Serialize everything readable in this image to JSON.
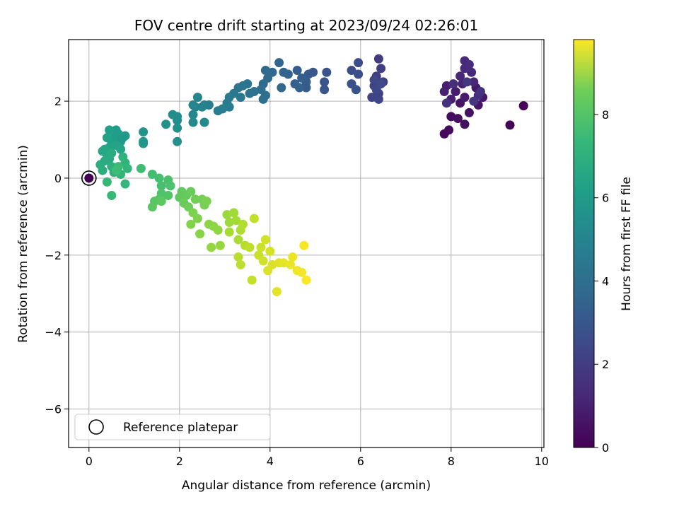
{
  "chart_data": {
    "type": "scatter",
    "title": "FOV centre drift starting at 2023/09/24 02:26:01",
    "xlabel": "Angular distance from reference (arcmin)",
    "ylabel": "Rotation from reference (arcmin)",
    "xlim": [
      -0.45,
      10.05
    ],
    "ylim": [
      -7.0,
      3.6
    ],
    "xticks": [
      0,
      2,
      4,
      6,
      8,
      10
    ],
    "yticks": [
      -6,
      -4,
      -2,
      0,
      2
    ],
    "grid": true,
    "colorbar": {
      "label": "Hours from first FF file",
      "range": [
        0,
        9.8
      ],
      "ticks": [
        0,
        2,
        4,
        6,
        8
      ],
      "colormap": "viridis"
    },
    "legend": {
      "placement": "lower-left",
      "entries": [
        "Reference platepar"
      ]
    },
    "reference_point": {
      "x": 0,
      "y": 0,
      "t": 0
    },
    "series": [
      {
        "color_by": "t",
        "points": [
          {
            "x": 9.6,
            "y": 1.88,
            "t": 0.05
          },
          {
            "x": 9.3,
            "y": 1.38,
            "t": 0.1
          },
          {
            "x": 7.85,
            "y": 1.15,
            "t": 0.2
          },
          {
            "x": 7.95,
            "y": 1.25,
            "t": 0.25
          },
          {
            "x": 8.0,
            "y": 1.6,
            "t": 0.3
          },
          {
            "x": 8.15,
            "y": 1.55,
            "t": 0.35
          },
          {
            "x": 8.3,
            "y": 1.4,
            "t": 0.4
          },
          {
            "x": 8.4,
            "y": 1.7,
            "t": 0.45
          },
          {
            "x": 8.2,
            "y": 1.95,
            "t": 0.5
          },
          {
            "x": 8.6,
            "y": 1.9,
            "t": 0.55
          },
          {
            "x": 8.7,
            "y": 2.1,
            "t": 0.6
          },
          {
            "x": 8.55,
            "y": 2.35,
            "t": 0.65
          },
          {
            "x": 8.3,
            "y": 2.1,
            "t": 0.7
          },
          {
            "x": 8.1,
            "y": 2.25,
            "t": 0.75
          },
          {
            "x": 7.9,
            "y": 2.4,
            "t": 0.8
          },
          {
            "x": 8.0,
            "y": 2.05,
            "t": 0.85
          },
          {
            "x": 7.85,
            "y": 2.25,
            "t": 0.9
          },
          {
            "x": 8.25,
            "y": 2.45,
            "t": 0.95
          },
          {
            "x": 8.5,
            "y": 2.5,
            "t": 1.0
          },
          {
            "x": 8.2,
            "y": 2.65,
            "t": 1.05
          },
          {
            "x": 8.45,
            "y": 2.75,
            "t": 1.1
          },
          {
            "x": 8.3,
            "y": 2.85,
            "t": 1.15
          },
          {
            "x": 8.3,
            "y": 3.05,
            "t": 1.2
          },
          {
            "x": 8.4,
            "y": 2.95,
            "t": 1.25
          },
          {
            "x": 8.6,
            "y": 2.15,
            "t": 1.3
          },
          {
            "x": 8.05,
            "y": 2.45,
            "t": 1.35
          },
          {
            "x": 7.9,
            "y": 1.95,
            "t": 1.4
          },
          {
            "x": 8.5,
            "y": 2.0,
            "t": 1.45
          },
          {
            "x": 8.65,
            "y": 2.25,
            "t": 1.5
          },
          {
            "x": 8.35,
            "y": 2.5,
            "t": 1.55
          },
          {
            "x": 6.4,
            "y": 3.1,
            "t": 1.7
          },
          {
            "x": 6.45,
            "y": 2.85,
            "t": 1.75
          },
          {
            "x": 6.35,
            "y": 2.65,
            "t": 1.8
          },
          {
            "x": 6.5,
            "y": 2.5,
            "t": 1.85
          },
          {
            "x": 6.3,
            "y": 2.4,
            "t": 1.9
          },
          {
            "x": 6.4,
            "y": 2.2,
            "t": 1.95
          },
          {
            "x": 6.25,
            "y": 2.1,
            "t": 2.0
          },
          {
            "x": 6.4,
            "y": 2.05,
            "t": 2.05
          },
          {
            "x": 6.3,
            "y": 2.55,
            "t": 2.1
          },
          {
            "x": 6.35,
            "y": 2.3,
            "t": 2.15
          },
          {
            "x": 6.45,
            "y": 2.45,
            "t": 2.2
          },
          {
            "x": 5.95,
            "y": 3.0,
            "t": 2.3
          },
          {
            "x": 5.8,
            "y": 2.8,
            "t": 2.35
          },
          {
            "x": 5.95,
            "y": 2.7,
            "t": 2.4
          },
          {
            "x": 5.8,
            "y": 2.45,
            "t": 2.45
          },
          {
            "x": 5.9,
            "y": 2.3,
            "t": 2.5
          },
          {
            "x": 5.25,
            "y": 2.75,
            "t": 2.55
          },
          {
            "x": 5.2,
            "y": 2.5,
            "t": 2.6
          },
          {
            "x": 5.2,
            "y": 2.3,
            "t": 2.65
          },
          {
            "x": 4.95,
            "y": 2.75,
            "t": 2.7
          },
          {
            "x": 4.85,
            "y": 2.7,
            "t": 2.75
          },
          {
            "x": 4.8,
            "y": 2.5,
            "t": 2.8
          },
          {
            "x": 4.8,
            "y": 2.35,
            "t": 2.85
          },
          {
            "x": 4.6,
            "y": 2.8,
            "t": 2.9
          },
          {
            "x": 4.7,
            "y": 2.6,
            "t": 2.95
          },
          {
            "x": 4.55,
            "y": 2.45,
            "t": 3.0
          },
          {
            "x": 4.65,
            "y": 2.35,
            "t": 3.05
          },
          {
            "x": 4.4,
            "y": 2.7,
            "t": 3.1
          },
          {
            "x": 4.3,
            "y": 2.75,
            "t": 3.15
          },
          {
            "x": 4.2,
            "y": 3.0,
            "t": 3.2
          },
          {
            "x": 4.25,
            "y": 2.35,
            "t": 3.25
          },
          {
            "x": 4.05,
            "y": 2.75,
            "t": 3.3
          },
          {
            "x": 3.9,
            "y": 2.8,
            "t": 3.35
          },
          {
            "x": 3.95,
            "y": 2.6,
            "t": 3.4
          },
          {
            "x": 3.85,
            "y": 2.45,
            "t": 3.45
          },
          {
            "x": 3.8,
            "y": 2.3,
            "t": 3.5
          },
          {
            "x": 3.9,
            "y": 2.15,
            "t": 3.55
          },
          {
            "x": 3.85,
            "y": 2.05,
            "t": 3.6
          },
          {
            "x": 3.65,
            "y": 2.25,
            "t": 3.65
          },
          {
            "x": 3.55,
            "y": 2.2,
            "t": 3.7
          },
          {
            "x": 3.5,
            "y": 2.45,
            "t": 3.75
          },
          {
            "x": 3.4,
            "y": 2.4,
            "t": 3.8
          },
          {
            "x": 3.3,
            "y": 2.35,
            "t": 3.85
          },
          {
            "x": 3.35,
            "y": 2.1,
            "t": 3.9
          },
          {
            "x": 3.2,
            "y": 2.2,
            "t": 3.95
          },
          {
            "x": 3.1,
            "y": 2.1,
            "t": 4.0
          },
          {
            "x": 3.05,
            "y": 1.95,
            "t": 4.05
          },
          {
            "x": 3.1,
            "y": 1.85,
            "t": 4.1
          },
          {
            "x": 2.95,
            "y": 1.8,
            "t": 4.15
          },
          {
            "x": 2.85,
            "y": 1.75,
            "t": 4.2
          },
          {
            "x": 2.65,
            "y": 1.9,
            "t": 4.25
          },
          {
            "x": 2.55,
            "y": 1.9,
            "t": 4.3
          },
          {
            "x": 2.5,
            "y": 1.85,
            "t": 4.35
          },
          {
            "x": 2.35,
            "y": 1.85,
            "t": 4.4
          },
          {
            "x": 2.4,
            "y": 2.1,
            "t": 4.45
          },
          {
            "x": 2.3,
            "y": 1.9,
            "t": 4.5
          },
          {
            "x": 2.3,
            "y": 1.65,
            "t": 4.55
          },
          {
            "x": 2.55,
            "y": 1.45,
            "t": 4.6
          },
          {
            "x": 2.3,
            "y": 1.45,
            "t": 4.65
          },
          {
            "x": 1.95,
            "y": 1.5,
            "t": 4.7
          },
          {
            "x": 1.95,
            "y": 1.6,
            "t": 4.75
          },
          {
            "x": 1.85,
            "y": 1.65,
            "t": 4.8
          },
          {
            "x": 1.95,
            "y": 1.3,
            "t": 4.85
          },
          {
            "x": 1.95,
            "y": 0.95,
            "t": 4.9
          },
          {
            "x": 1.7,
            "y": 1.4,
            "t": 4.95
          },
          {
            "x": 1.2,
            "y": 1.2,
            "t": 5.05
          },
          {
            "x": 1.2,
            "y": 0.95,
            "t": 5.1
          },
          {
            "x": 1.2,
            "y": 0.9,
            "t": 5.15
          },
          {
            "x": 0.8,
            "y": 1.1,
            "t": 5.2
          },
          {
            "x": 0.75,
            "y": 1.05,
            "t": 5.25
          },
          {
            "x": 0.7,
            "y": 0.95,
            "t": 5.3
          },
          {
            "x": 0.65,
            "y": 1.15,
            "t": 5.35
          },
          {
            "x": 0.6,
            "y": 1.25,
            "t": 5.4
          },
          {
            "x": 0.55,
            "y": 1.05,
            "t": 5.45
          },
          {
            "x": 0.5,
            "y": 0.95,
            "t": 5.5
          },
          {
            "x": 0.45,
            "y": 1.25,
            "t": 5.55
          },
          {
            "x": 0.4,
            "y": 1.05,
            "t": 5.6
          },
          {
            "x": 0.45,
            "y": 0.8,
            "t": 5.65
          },
          {
            "x": 0.6,
            "y": 0.85,
            "t": 5.7
          },
          {
            "x": 0.7,
            "y": 0.75,
            "t": 5.75
          },
          {
            "x": 0.35,
            "y": 0.75,
            "t": 5.8
          },
          {
            "x": 0.3,
            "y": 0.7,
            "t": 5.85
          },
          {
            "x": 0.4,
            "y": 0.6,
            "t": 5.9
          },
          {
            "x": 0.45,
            "y": 0.5,
            "t": 5.95
          },
          {
            "x": 0.5,
            "y": 0.65,
            "t": 6.0
          },
          {
            "x": 0.35,
            "y": 0.45,
            "t": 6.05
          },
          {
            "x": 0.25,
            "y": 0.35,
            "t": 6.1
          },
          {
            "x": 0.3,
            "y": 0.2,
            "t": 6.15
          },
          {
            "x": 0.5,
            "y": 0.3,
            "t": 6.2
          },
          {
            "x": 0.55,
            "y": 0.15,
            "t": 6.25
          },
          {
            "x": 0.75,
            "y": 0.55,
            "t": 6.3
          },
          {
            "x": 0.8,
            "y": 0.4,
            "t": 6.35
          },
          {
            "x": 0.85,
            "y": 0.25,
            "t": 6.4
          },
          {
            "x": 0.7,
            "y": 0.1,
            "t": 6.45
          },
          {
            "x": 0.8,
            "y": -0.15,
            "t": 6.5
          },
          {
            "x": 0.4,
            "y": -0.1,
            "t": 6.55
          },
          {
            "x": 0.5,
            "y": -0.45,
            "t": 6.6
          },
          {
            "x": 0.65,
            "y": 0.3,
            "t": 6.65
          },
          {
            "x": 0.6,
            "y": 0.2,
            "t": 6.7
          },
          {
            "x": 1.15,
            "y": 0.25,
            "t": 6.75
          },
          {
            "x": 1.4,
            "y": 0.1,
            "t": 6.8
          },
          {
            "x": 1.55,
            "y": 0.0,
            "t": 6.85
          },
          {
            "x": 1.6,
            "y": -0.2,
            "t": 6.9
          },
          {
            "x": 1.75,
            "y": -0.05,
            "t": 6.95
          },
          {
            "x": 1.8,
            "y": -0.2,
            "t": 7.0
          },
          {
            "x": 1.6,
            "y": -0.4,
            "t": 7.05
          },
          {
            "x": 1.75,
            "y": -0.45,
            "t": 7.1
          },
          {
            "x": 1.55,
            "y": -0.55,
            "t": 7.15
          },
          {
            "x": 1.45,
            "y": -0.6,
            "t": 7.2
          },
          {
            "x": 1.4,
            "y": -0.75,
            "t": 7.25
          },
          {
            "x": 1.6,
            "y": -0.6,
            "t": 7.3
          },
          {
            "x": 2.0,
            "y": -0.5,
            "t": 7.35
          },
          {
            "x": 2.05,
            "y": -0.35,
            "t": 7.4
          },
          {
            "x": 2.15,
            "y": -0.45,
            "t": 7.45
          },
          {
            "x": 2.25,
            "y": -0.35,
            "t": 7.5
          },
          {
            "x": 2.1,
            "y": -0.65,
            "t": 7.55
          },
          {
            "x": 2.2,
            "y": -0.75,
            "t": 7.6
          },
          {
            "x": 2.35,
            "y": -0.55,
            "t": 7.65
          },
          {
            "x": 2.5,
            "y": -0.55,
            "t": 7.7
          },
          {
            "x": 2.55,
            "y": -0.7,
            "t": 7.75
          },
          {
            "x": 2.6,
            "y": -0.6,
            "t": 7.8
          },
          {
            "x": 2.3,
            "y": -0.9,
            "t": 7.85
          },
          {
            "x": 2.4,
            "y": -1.05,
            "t": 7.9
          },
          {
            "x": 2.25,
            "y": -1.2,
            "t": 7.95
          },
          {
            "x": 2.45,
            "y": -1.45,
            "t": 8.0
          },
          {
            "x": 2.65,
            "y": -1.2,
            "t": 8.05
          },
          {
            "x": 2.75,
            "y": -1.25,
            "t": 8.1
          },
          {
            "x": 2.85,
            "y": -1.35,
            "t": 8.15
          },
          {
            "x": 2.7,
            "y": -1.8,
            "t": 8.2
          },
          {
            "x": 2.9,
            "y": -1.75,
            "t": 8.25
          },
          {
            "x": 3.05,
            "y": -0.95,
            "t": 8.3
          },
          {
            "x": 3.1,
            "y": -1.15,
            "t": 8.35
          },
          {
            "x": 3.2,
            "y": -0.9,
            "t": 8.4
          },
          {
            "x": 3.25,
            "y": -1.1,
            "t": 8.45
          },
          {
            "x": 3.1,
            "y": -1.4,
            "t": 8.5
          },
          {
            "x": 3.3,
            "y": -1.6,
            "t": 8.55
          },
          {
            "x": 3.35,
            "y": -1.35,
            "t": 8.6
          },
          {
            "x": 3.4,
            "y": -1.2,
            "t": 8.65
          },
          {
            "x": 3.45,
            "y": -1.75,
            "t": 8.7
          },
          {
            "x": 3.3,
            "y": -2.05,
            "t": 8.75
          },
          {
            "x": 3.35,
            "y": -2.25,
            "t": 8.8
          },
          {
            "x": 3.55,
            "y": -1.8,
            "t": 8.85
          },
          {
            "x": 3.65,
            "y": -1.05,
            "t": 8.9
          },
          {
            "x": 3.6,
            "y": -2.65,
            "t": 8.95
          },
          {
            "x": 3.75,
            "y": -2.0,
            "t": 9.0
          },
          {
            "x": 3.8,
            "y": -1.8,
            "t": 9.05
          },
          {
            "x": 3.85,
            "y": -2.15,
            "t": 9.1
          },
          {
            "x": 3.9,
            "y": -1.6,
            "t": 9.15
          },
          {
            "x": 4.0,
            "y": -1.9,
            "t": 9.2
          },
          {
            "x": 4.05,
            "y": -2.25,
            "t": 9.25
          },
          {
            "x": 3.95,
            "y": -2.4,
            "t": 9.3
          },
          {
            "x": 4.2,
            "y": -2.2,
            "t": 9.35
          },
          {
            "x": 4.15,
            "y": -2.95,
            "t": 9.4
          },
          {
            "x": 4.3,
            "y": -2.2,
            "t": 9.45
          },
          {
            "x": 4.45,
            "y": -2.25,
            "t": 9.5
          },
          {
            "x": 4.5,
            "y": -2.05,
            "t": 9.55
          },
          {
            "x": 4.6,
            "y": -2.4,
            "t": 9.6
          },
          {
            "x": 4.7,
            "y": -2.45,
            "t": 9.65
          },
          {
            "x": 4.75,
            "y": -1.75,
            "t": 9.7
          },
          {
            "x": 4.8,
            "y": -2.65,
            "t": 9.75
          }
        ]
      }
    ]
  }
}
